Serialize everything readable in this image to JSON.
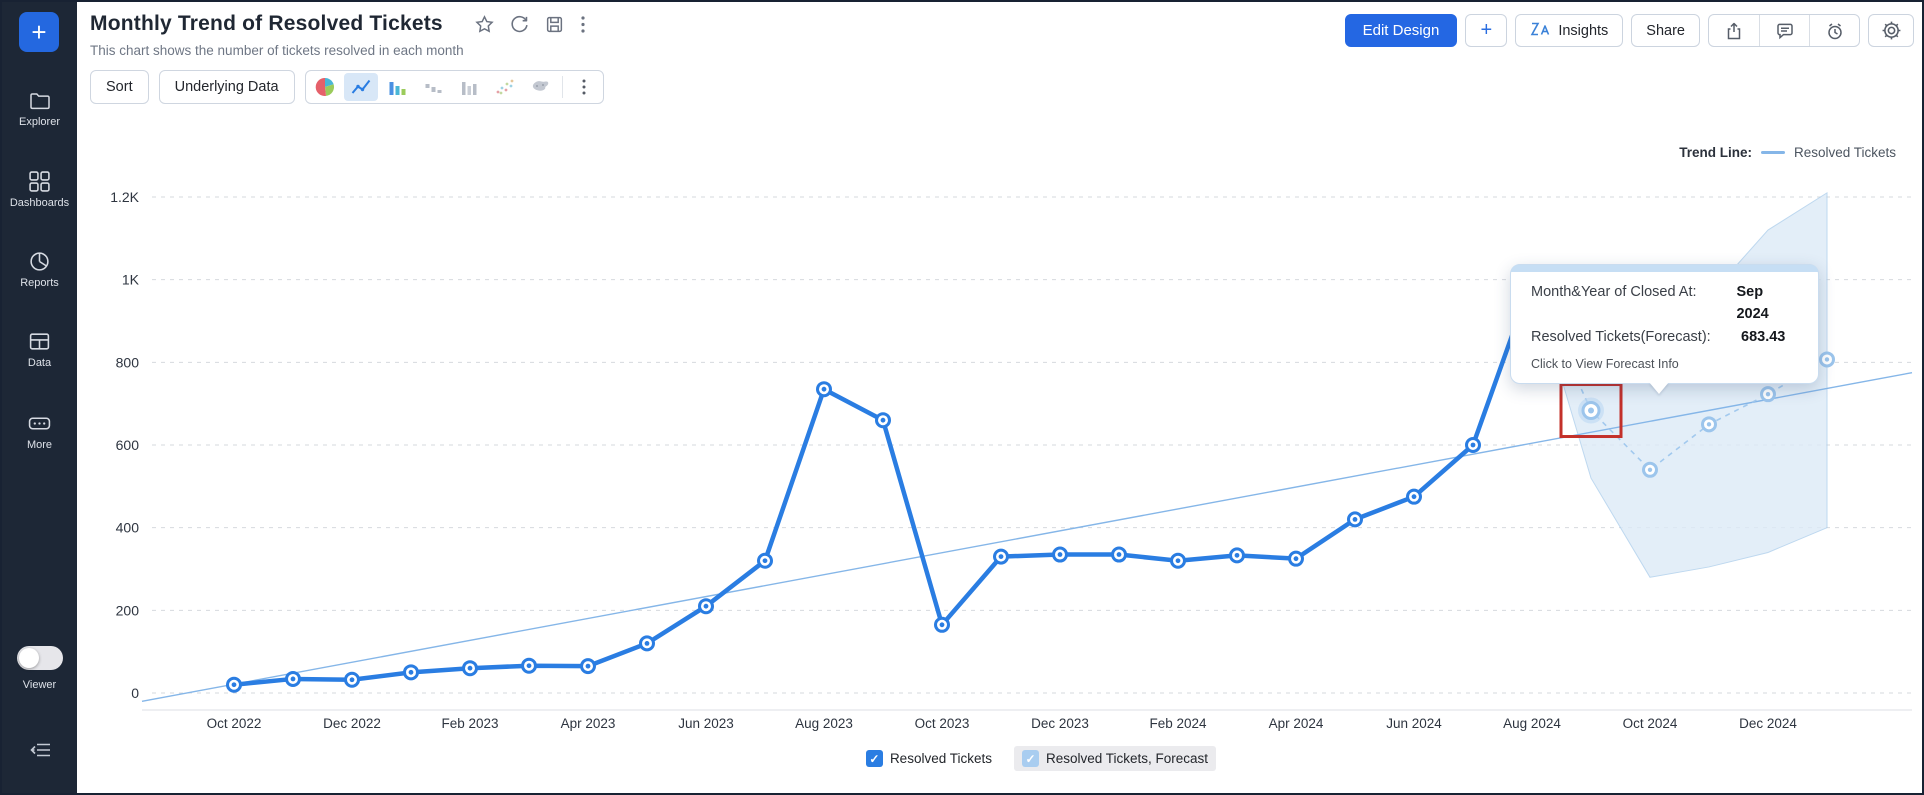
{
  "colors": {
    "accent_blue": "#2a7de2",
    "forecast_blue": "#a9cdf0",
    "band_fill": "#ddeaf7",
    "trend_blue": "#85b6e8",
    "highlight_red": "#c3302a",
    "sidebar_bg": "#1d2736",
    "primary_button": "#2467e3"
  },
  "sidebar": {
    "plus_label": "+",
    "items": [
      {
        "label": "Explorer",
        "icon": "folder-icon"
      },
      {
        "label": "Dashboards",
        "icon": "dashboards-grid-icon"
      },
      {
        "label": "Reports",
        "icon": "pie-report-icon"
      },
      {
        "label": "Data",
        "icon": "table-data-icon"
      },
      {
        "label": "More",
        "icon": "more-ellipsis-icon"
      }
    ],
    "viewer_label": "Viewer",
    "collapse_icon": "collapse-sidebar-icon"
  },
  "header": {
    "title": "Monthly Trend of Resolved Tickets",
    "subtitle": "This chart shows the number of tickets resolved in each month",
    "title_icons": [
      "star-icon",
      "refresh-icon",
      "save-icon",
      "kebab-menu-icon"
    ],
    "edit_design_label": "Edit Design",
    "add_label": "+",
    "insights_label": "Insights",
    "share_label": "Share",
    "right_icons": [
      "export-icon",
      "comment-icon",
      "alarm-icon",
      "gear-icon"
    ]
  },
  "toolbar": {
    "sort_label": "Sort",
    "underlying_data_label": "Underlying Data",
    "chart_type_icons": [
      "pie-chart-icon",
      "line-chart-icon",
      "bar-chart-icon",
      "bar-chart-gray-icon",
      "bar-chart-alt-icon",
      "scatter-chart-icon",
      "map-chart-icon",
      "kebab-menu-icon"
    ],
    "selected_chart_type": "line-chart-icon"
  },
  "trend_legend": {
    "label": "Trend Line:",
    "series": "Resolved Tickets"
  },
  "tooltip": {
    "row1_label": "Month&Year of Closed At:",
    "row1_value": "Sep 2024",
    "row2_label": "Resolved Tickets(Forecast):",
    "row2_value": "683.43",
    "footer": "Click to View Forecast Info"
  },
  "legend": {
    "items": [
      {
        "label": "Resolved Tickets",
        "checkbox_color": "#2a7de2",
        "checked": true
      },
      {
        "label": "Resolved Tickets, Forecast",
        "checkbox_color": "#a9cdf0",
        "checked": true
      }
    ]
  },
  "chart_data": {
    "type": "line",
    "title": "Monthly Trend of Resolved Tickets",
    "xlabel": "Month&Year of Closed At",
    "ylabel": "Resolved Tickets",
    "ylim": [
      0,
      1200
    ],
    "grid": "dashed-horizontal",
    "x": [
      "Oct 2022",
      "Nov 2022",
      "Dec 2022",
      "Jan 2023",
      "Feb 2023",
      "Mar 2023",
      "Apr 2023",
      "May 2023",
      "Jun 2023",
      "Jul 2023",
      "Aug 2023",
      "Sep 2023",
      "Oct 2023",
      "Nov 2023",
      "Dec 2023",
      "Jan 2024",
      "Feb 2024",
      "Mar 2024",
      "Apr 2024",
      "May 2024",
      "Jun 2024",
      "Jul 2024",
      "Aug 2024",
      "Sep 2024",
      "Oct 2024",
      "Nov 2024",
      "Dec 2024",
      "Jan 2025"
    ],
    "x_tick_every": 2,
    "yticks": [
      {
        "v": 0,
        "label": "0"
      },
      {
        "v": 200,
        "label": "200"
      },
      {
        "v": 400,
        "label": "400"
      },
      {
        "v": 600,
        "label": "600"
      },
      {
        "v": 800,
        "label": "800"
      },
      {
        "v": 1000,
        "label": "1K"
      },
      {
        "v": 1200,
        "label": "1.2K"
      }
    ],
    "series": [
      {
        "name": "Resolved Tickets",
        "color": "#2a7de2",
        "style": "solid",
        "values": [
          20,
          34,
          32,
          50,
          60,
          66,
          65,
          120,
          210,
          320,
          735,
          660,
          165,
          330,
          335,
          335,
          320,
          333,
          325,
          420,
          475,
          600,
          1000
        ]
      },
      {
        "name": "Resolved Tickets, Forecast",
        "color": "#a9cdf0",
        "style": "dashed",
        "start_index": 23,
        "values": [
          683.43,
          540,
          650,
          723,
          807
        ]
      }
    ],
    "forecast_band": {
      "start_index": 22,
      "upper": [
        1000,
        800,
        870,
        960,
        1120,
        1210
      ],
      "lower": [
        1000,
        520,
        280,
        305,
        340,
        400
      ]
    },
    "trend_line": {
      "name": "Resolved Tickets",
      "color": "#85b6e8",
      "from_value": -20,
      "to_value": 775
    },
    "highlight": {
      "series": 1,
      "point_index": 0,
      "month": "Sep 2024",
      "value": 683.43,
      "red_box": true
    }
  }
}
